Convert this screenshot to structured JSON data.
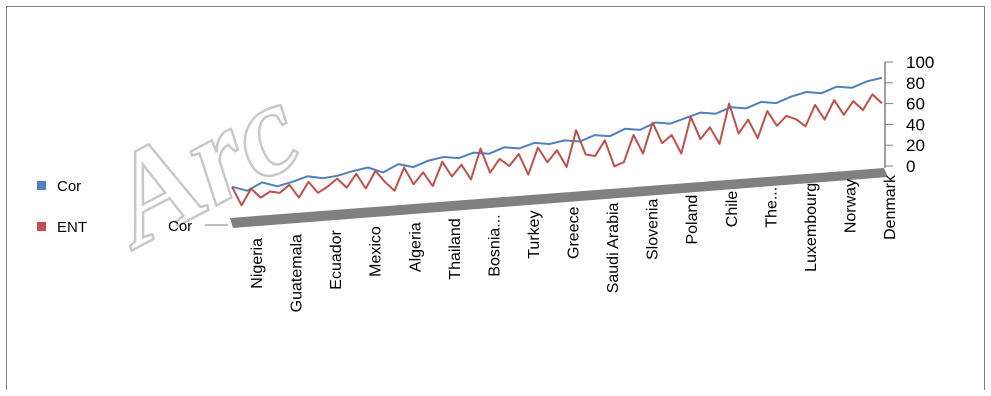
{
  "watermark": "Arc",
  "chart_data": {
    "type": "line",
    "view": "3d",
    "z_category_label": "Cor",
    "ylim": [
      0,
      100
    ],
    "y_ticks": [
      "100",
      "80",
      "60",
      "40",
      "20",
      "0"
    ],
    "x_tick_labels": [
      "Nigeria",
      "Guatemala",
      "Ecuador",
      "Mexico",
      "Algeria",
      "Thailand",
      "Bosnia...",
      "Turkey",
      "Greece",
      "Saudi Arabia",
      "Slovenia",
      "Poland",
      "Chile",
      "The...",
      "Luxembourg",
      "Norway",
      "Denmark"
    ],
    "legend_position": "left",
    "series": [
      {
        "name": "Cor",
        "color": "#4f81bd",
        "values": [
          15,
          10,
          18,
          13,
          17,
          22,
          19,
          21,
          25,
          28,
          22,
          30,
          26,
          32,
          35,
          33,
          38,
          36,
          42,
          40,
          45,
          43,
          46,
          44,
          50,
          48,
          55,
          53,
          60,
          58,
          63,
          68,
          66,
          72,
          70,
          76,
          74,
          80,
          84,
          82,
          88,
          86,
          92,
          95
        ]
      },
      {
        "name": "ENT",
        "color": "#c0504d",
        "values": [
          15,
          -5,
          12,
          2,
          8,
          6,
          14,
          0,
          16,
          4,
          10,
          18,
          8,
          22,
          6,
          24,
          12,
          2,
          26,
          8,
          20,
          5,
          30,
          14,
          26,
          10,
          42,
          16,
          30,
          22,
          34,
          12,
          40,
          24,
          36,
          18,
          56,
          30,
          28,
          44,
          16,
          20,
          48,
          28,
          60,
          38,
          46,
          26,
          64,
          40,
          52,
          34,
          76,
          44,
          58,
          38,
          66,
          50,
          60,
          56,
          48,
          70,
          54,
          74,
          58,
          72,
          62,
          78,
          68
        ]
      }
    ]
  }
}
